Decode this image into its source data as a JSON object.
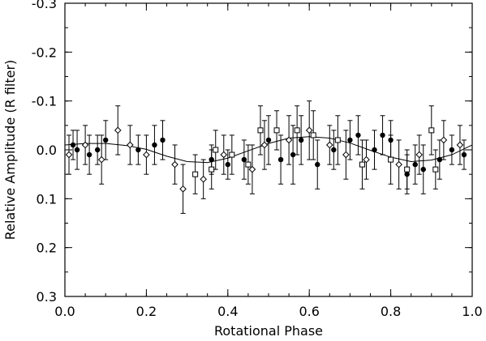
{
  "chart_data": {
    "type": "scatter",
    "title": "",
    "xlabel": "Rotational Phase",
    "ylabel": "Relative Amplitude  (R filter)",
    "xlim": [
      0.0,
      1.0
    ],
    "ylim": [
      -0.3,
      0.3
    ],
    "y_inverted": true,
    "grid": false,
    "legend": "none",
    "x_ticks": [
      "0.0",
      "0.2",
      "0.4",
      "0.6",
      "0.8",
      "1.0"
    ],
    "y_ticks": [
      "-0.3",
      "-0.2",
      "-0.1",
      "0.0",
      "0.1",
      "0.2",
      "0.3"
    ],
    "colors": {
      "marks": "#000000",
      "background": "#ffffff"
    },
    "series": [
      {
        "marker": "filled-circle",
        "points": [
          {
            "x": 0.02,
            "y": -0.01,
            "err": 0.03
          },
          {
            "x": 0.03,
            "y": 0.0,
            "err": 0.04
          },
          {
            "x": 0.06,
            "y": 0.01,
            "err": 0.04
          },
          {
            "x": 0.08,
            "y": 0.0,
            "err": 0.03
          },
          {
            "x": 0.1,
            "y": -0.02,
            "err": 0.04
          },
          {
            "x": 0.18,
            "y": 0.0,
            "err": 0.03
          },
          {
            "x": 0.22,
            "y": -0.01,
            "err": 0.04
          },
          {
            "x": 0.24,
            "y": -0.02,
            "err": 0.04
          },
          {
            "x": 0.36,
            "y": 0.02,
            "err": 0.03
          },
          {
            "x": 0.4,
            "y": 0.03,
            "err": 0.03
          },
          {
            "x": 0.44,
            "y": 0.02,
            "err": 0.04
          },
          {
            "x": 0.5,
            "y": -0.02,
            "err": 0.05
          },
          {
            "x": 0.53,
            "y": 0.02,
            "err": 0.05
          },
          {
            "x": 0.56,
            "y": 0.01,
            "err": 0.06
          },
          {
            "x": 0.58,
            "y": -0.02,
            "err": 0.05
          },
          {
            "x": 0.62,
            "y": 0.03,
            "err": 0.05
          },
          {
            "x": 0.66,
            "y": 0.0,
            "err": 0.04
          },
          {
            "x": 0.7,
            "y": -0.02,
            "err": 0.04
          },
          {
            "x": 0.72,
            "y": -0.03,
            "err": 0.04
          },
          {
            "x": 0.76,
            "y": 0.0,
            "err": 0.04
          },
          {
            "x": 0.78,
            "y": -0.03,
            "err": 0.04
          },
          {
            "x": 0.8,
            "y": -0.02,
            "err": 0.04
          },
          {
            "x": 0.84,
            "y": 0.05,
            "err": 0.04
          },
          {
            "x": 0.86,
            "y": 0.03,
            "err": 0.04
          },
          {
            "x": 0.88,
            "y": 0.04,
            "err": 0.05
          },
          {
            "x": 0.92,
            "y": 0.02,
            "err": 0.04
          },
          {
            "x": 0.95,
            "y": 0.0,
            "err": 0.03
          },
          {
            "x": 0.98,
            "y": 0.01,
            "err": 0.03
          }
        ]
      },
      {
        "marker": "open-diamond",
        "points": [
          {
            "x": 0.01,
            "y": 0.01,
            "err": 0.04
          },
          {
            "x": 0.05,
            "y": -0.01,
            "err": 0.04
          },
          {
            "x": 0.09,
            "y": 0.02,
            "err": 0.05
          },
          {
            "x": 0.13,
            "y": -0.04,
            "err": 0.05
          },
          {
            "x": 0.16,
            "y": -0.01,
            "err": 0.04
          },
          {
            "x": 0.2,
            "y": 0.01,
            "err": 0.04
          },
          {
            "x": 0.27,
            "y": 0.03,
            "err": 0.04
          },
          {
            "x": 0.29,
            "y": 0.08,
            "err": 0.05
          },
          {
            "x": 0.34,
            "y": 0.06,
            "err": 0.04
          },
          {
            "x": 0.39,
            "y": 0.01,
            "err": 0.04
          },
          {
            "x": 0.46,
            "y": 0.04,
            "err": 0.05
          },
          {
            "x": 0.49,
            "y": -0.01,
            "err": 0.05
          },
          {
            "x": 0.55,
            "y": -0.02,
            "err": 0.05
          },
          {
            "x": 0.6,
            "y": -0.04,
            "err": 0.06
          },
          {
            "x": 0.65,
            "y": -0.01,
            "err": 0.04
          },
          {
            "x": 0.69,
            "y": 0.01,
            "err": 0.05
          },
          {
            "x": 0.74,
            "y": 0.02,
            "err": 0.04
          },
          {
            "x": 0.82,
            "y": 0.03,
            "err": 0.05
          },
          {
            "x": 0.87,
            "y": 0.01,
            "err": 0.04
          },
          {
            "x": 0.93,
            "y": -0.02,
            "err": 0.04
          },
          {
            "x": 0.97,
            "y": -0.01,
            "err": 0.04
          }
        ]
      },
      {
        "marker": "open-square",
        "points": [
          {
            "x": 0.32,
            "y": 0.05,
            "err": 0.04
          },
          {
            "x": 0.36,
            "y": 0.04,
            "err": 0.04
          },
          {
            "x": 0.37,
            "y": 0.0,
            "err": 0.04
          },
          {
            "x": 0.41,
            "y": 0.01,
            "err": 0.04
          },
          {
            "x": 0.45,
            "y": 0.03,
            "err": 0.04
          },
          {
            "x": 0.48,
            "y": -0.04,
            "err": 0.05
          },
          {
            "x": 0.52,
            "y": -0.04,
            "err": 0.04
          },
          {
            "x": 0.57,
            "y": -0.04,
            "err": 0.05
          },
          {
            "x": 0.61,
            "y": -0.03,
            "err": 0.05
          },
          {
            "x": 0.67,
            "y": -0.02,
            "err": 0.05
          },
          {
            "x": 0.73,
            "y": 0.03,
            "err": 0.05
          },
          {
            "x": 0.8,
            "y": 0.02,
            "err": 0.05
          },
          {
            "x": 0.84,
            "y": 0.04,
            "err": 0.04
          },
          {
            "x": 0.9,
            "y": -0.04,
            "err": 0.05
          },
          {
            "x": 0.91,
            "y": 0.04,
            "err": 0.04
          }
        ]
      }
    ],
    "model_curve": {
      "type": "sinusoid",
      "amplitude": 0.027,
      "x": [
        0.0,
        0.05,
        0.1,
        0.15,
        0.2,
        0.25,
        0.3,
        0.35,
        0.4,
        0.45,
        0.5,
        0.55,
        0.6,
        0.65,
        0.7,
        0.75,
        0.8,
        0.85,
        0.9,
        0.95,
        1.0
      ],
      "y": [
        -0.01,
        -0.013,
        -0.013,
        -0.009,
        -0.001,
        0.013,
        0.024,
        0.026,
        0.017,
        0.002,
        -0.013,
        -0.024,
        -0.027,
        -0.024,
        -0.014,
        0.001,
        0.015,
        0.024,
        0.021,
        0.01,
        -0.01
      ]
    }
  }
}
